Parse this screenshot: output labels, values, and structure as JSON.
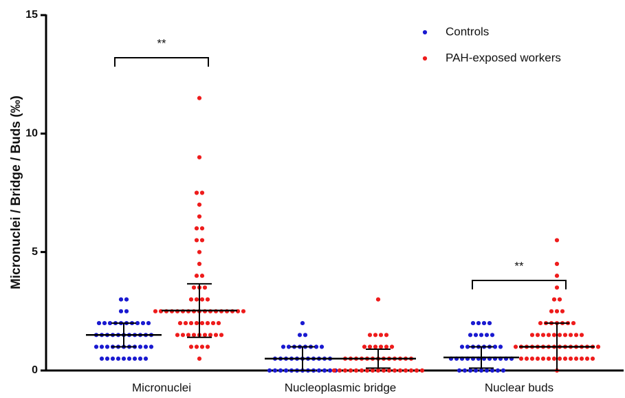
{
  "chart_data": {
    "type": "dotplot",
    "y_label": "Micronuclei / Bridge / Buds (‰)",
    "categories": [
      "Micronuclei",
      "Nucleoplasmic bridge",
      "Nuclear buds"
    ],
    "ylim": [
      0,
      15
    ],
    "yticks": [
      0,
      5,
      10,
      15
    ],
    "legend": "top-right",
    "series": [
      {
        "name": "Controls",
        "color": "#1a1ad0",
        "values": [
          [
            3,
            3,
            2.5,
            2.5,
            2,
            2,
            2,
            2,
            2,
            2,
            2,
            2,
            2,
            2,
            1.5,
            1.5,
            1.5,
            1.5,
            1.5,
            1.5,
            1.5,
            1.5,
            1.5,
            1.5,
            1.5,
            1,
            1,
            1,
            1,
            1,
            1,
            1,
            1,
            1,
            1,
            1,
            0.5,
            0.5,
            0.5,
            0.5,
            0.5,
            0.5,
            0.5,
            0.5,
            0.5
          ],
          [
            2,
            1.5,
            1.5,
            1,
            1,
            1,
            1,
            1,
            1,
            1,
            1,
            0.5,
            0.5,
            0.5,
            0.5,
            0.5,
            0.5,
            0.5,
            0.5,
            0.5,
            0.5,
            0.5,
            0,
            0,
            0,
            0,
            0,
            0,
            0,
            0,
            0,
            0,
            0,
            0,
            0
          ],
          [
            2,
            2,
            2,
            2,
            1.5,
            1.5,
            1.5,
            1.5,
            1.5,
            1,
            1,
            1,
            1,
            1,
            1,
            1,
            1,
            0.5,
            0.5,
            0.5,
            0.5,
            0.5,
            0.5,
            0.5,
            0.5,
            0.5,
            0.5,
            0.5,
            0.5,
            0,
            0,
            0,
            0,
            0,
            0,
            0,
            0,
            0
          ]
        ],
        "means": [
          1.5,
          0.5,
          0.55
        ],
        "sds": [
          0.5,
          0.5,
          0.45
        ]
      },
      {
        "name": "PAH-exposed workers",
        "color": "#ee1c1c",
        "values": [
          [
            11.5,
            9,
            7.5,
            7.5,
            7,
            6.5,
            6,
            6,
            5.5,
            5.5,
            5,
            4.5,
            4,
            4,
            3.5,
            3.5,
            3.5,
            3,
            3,
            3,
            3,
            2.5,
            2.5,
            2.5,
            2.5,
            2.5,
            2.5,
            2.5,
            2.5,
            2.5,
            2.5,
            2.5,
            2.5,
            2.5,
            2.5,
            2.5,
            2.5,
            2.5,
            2,
            2,
            2,
            2,
            2,
            2,
            2,
            2,
            1.5,
            1.5,
            1.5,
            1.5,
            1.5,
            1.5,
            1.5,
            1.5,
            1.5,
            1,
            1,
            1,
            1,
            0.5
          ],
          [
            3,
            1.5,
            1.5,
            1.5,
            1.5,
            1,
            1,
            1,
            1,
            1,
            1,
            0.5,
            0.5,
            0.5,
            0.5,
            0.5,
            0.5,
            0.5,
            0.5,
            0.5,
            0.5,
            0.5,
            0.5,
            0.5,
            0,
            0,
            0,
            0,
            0,
            0,
            0,
            0,
            0,
            0,
            0,
            0,
            0,
            0,
            0,
            0,
            0
          ],
          [
            5.5,
            4.5,
            4,
            3.5,
            3,
            3,
            2.5,
            2.5,
            2.5,
            2,
            2,
            2,
            2,
            2,
            2,
            2,
            1.5,
            1.5,
            1.5,
            1.5,
            1.5,
            1.5,
            1.5,
            1.5,
            1.5,
            1.5,
            1,
            1,
            1,
            1,
            1,
            1,
            1,
            1,
            1,
            1,
            1,
            1,
            1,
            1,
            1,
            1,
            0.5,
            0.5,
            0.5,
            0.5,
            0.5,
            0.5,
            0.5,
            0.5,
            0.5,
            0.5,
            0.5,
            0.5,
            0.5,
            0.5,
            0
          ]
        ],
        "means": [
          2.53,
          0.5,
          1.0
        ],
        "sds": [
          1.13,
          0.4,
          1.0
        ]
      }
    ],
    "annotations": [
      {
        "text": "**",
        "category": 0,
        "y": 13.2
      },
      {
        "text": "**",
        "category": 2,
        "y": 3.8
      }
    ]
  }
}
